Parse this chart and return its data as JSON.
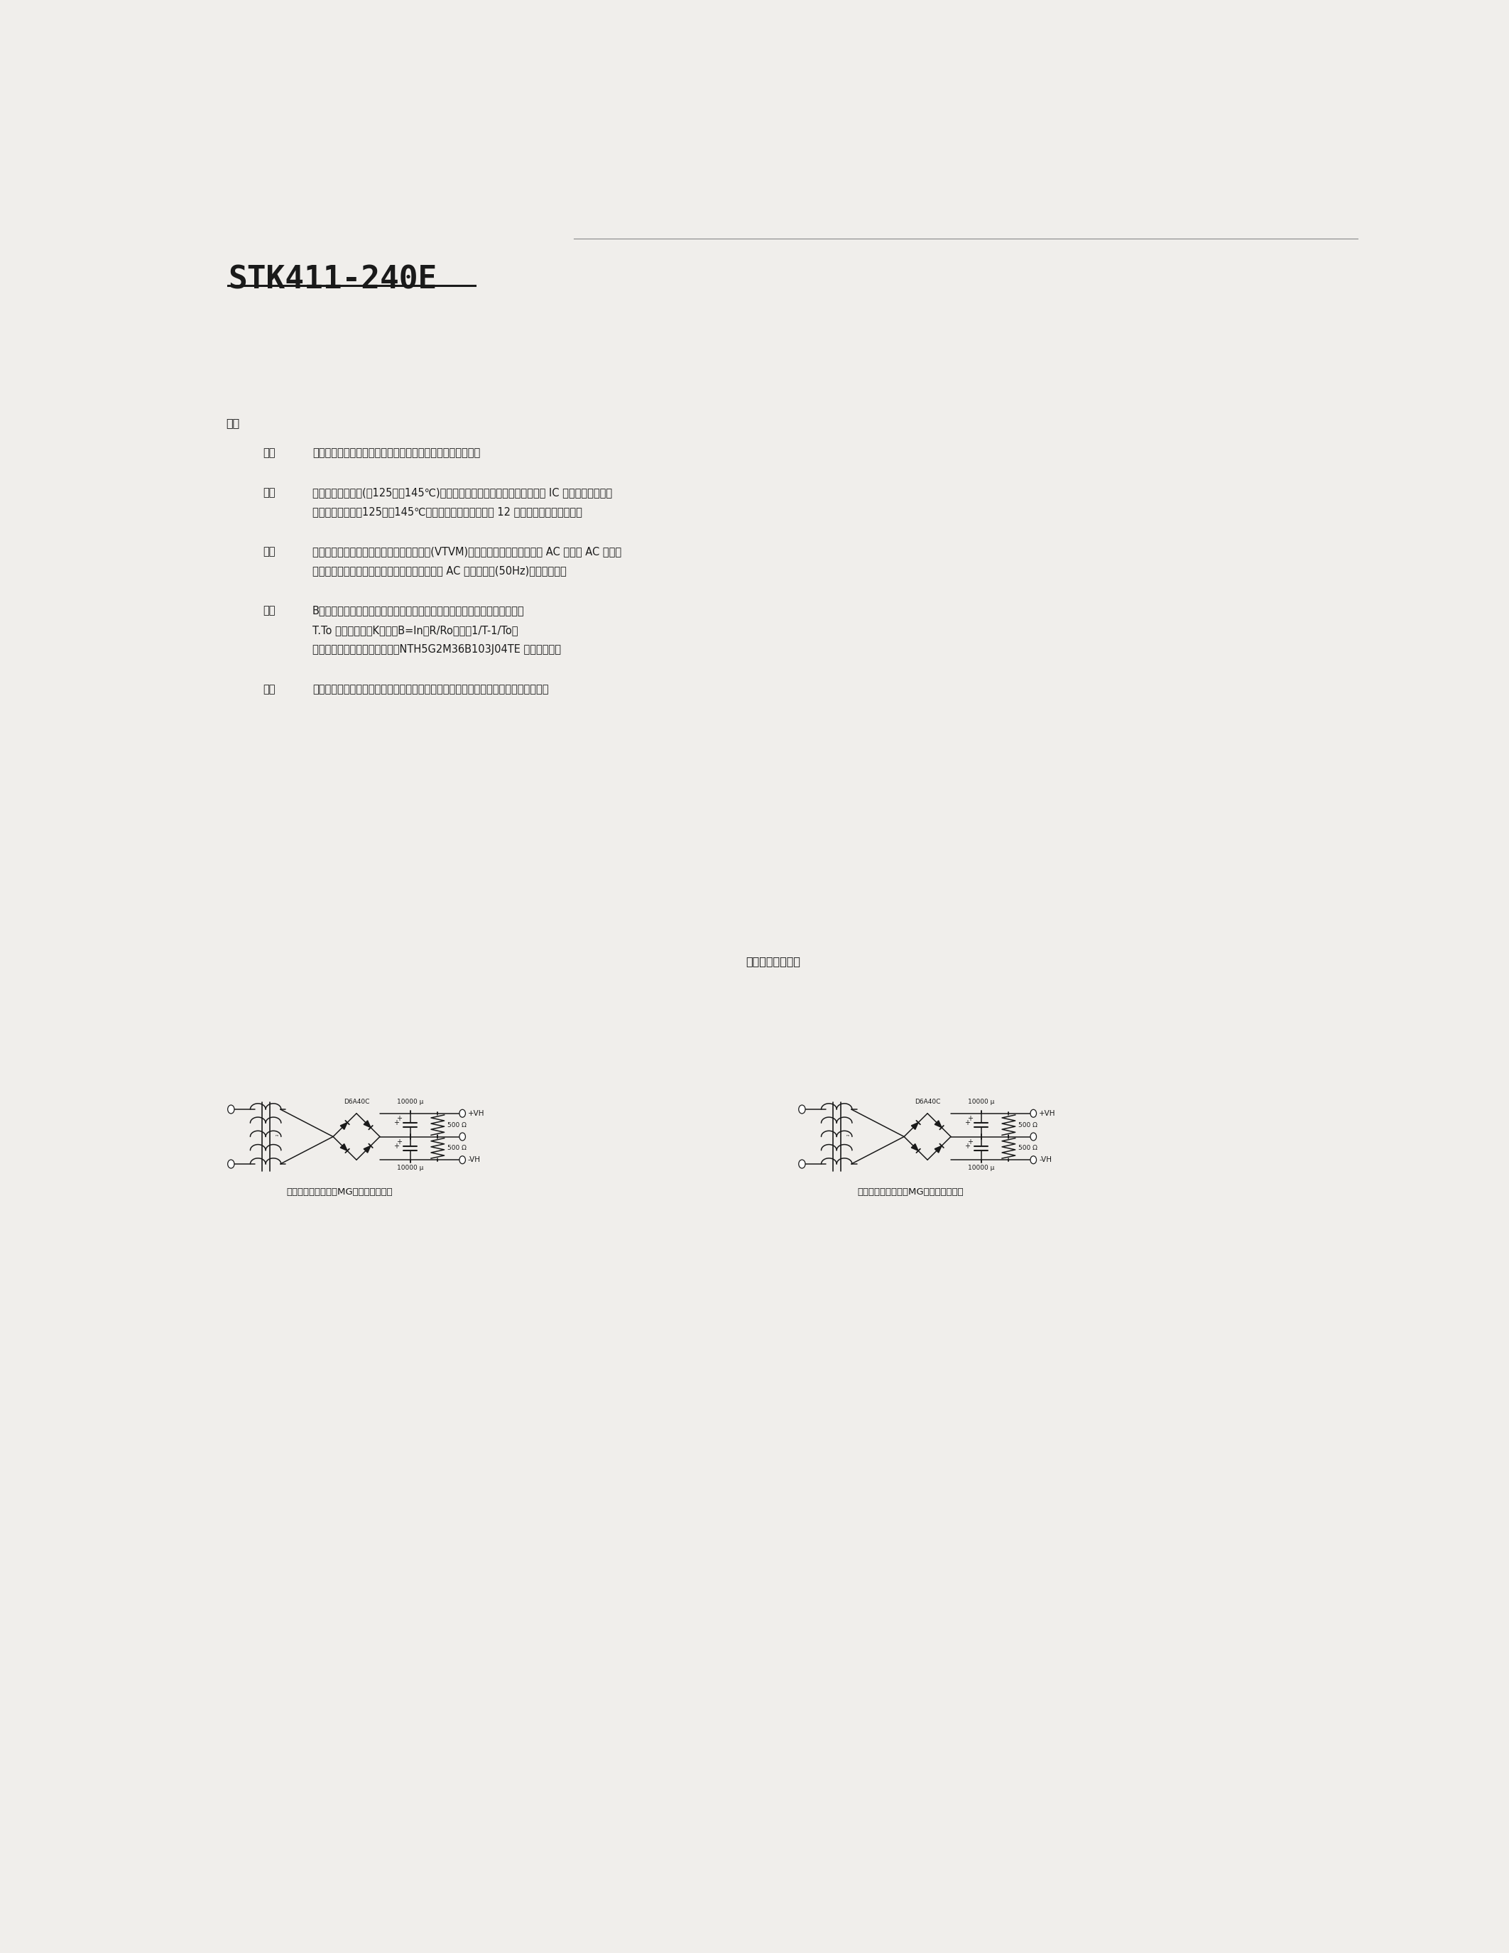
{
  "title": "STK411-240E",
  "background_color": "#f0eeeb",
  "text_color": "#1a1a1a",
  "title_fontsize": 32,
  "body_fontsize": 10.5,
  "page_width": 21.25,
  "page_height": 27.5,
  "biko": "備考",
  "note1_marker": "＊１",
  "note1": "検査時の電源には指定のないかぎり定電圧電源を使用する。",
  "note2_marker": "＊２",
  "note2_l1": "過熱検出素子温度(＋125〜＋145℃)は、異常時の動作を前提とするもので IC の動作を保証する",
  "note2_l2": "温度ではない。＋125〜＋145℃の温度範囲では累積時間 12 時間以内の使用とする。",
  "note3_marker": "＊３",
  "note3_l1": "出力雑音電圧は、平均値指示型実行値目盛(VTVM)のピーク値を示す。但し， AC 電源は AC 一次側",
  "note3_l2": "ラインのフリッカ性ノイズの影響をなくすため AC 安定化電源(50Hz)を使用する。",
  "note4_marker": "＊４",
  "note4_l1": "B定数：規定された周囲温度２点での抵抗値を用いて、次式より算出する。",
  "note4_l2": "T.To は絶対温度（K）　　B=ln（R/Ro）／（1/T-1/To）",
  "note4_l3": "過熱検出素子は村田製作所製　NTH5G2M36B103J04TE を使用する。",
  "note5_marker": "＊５",
  "note5": "負荷短絡許容時間及び出力雑音電圧の測定は、下図の指定トランス電源を使用する。",
  "circuit_title": "指定トランス電源",
  "circuit1_label": "指定トランス電源（MG－２５０相当）",
  "circuit2_label": "指定トランス電源（MG－２００相当）"
}
